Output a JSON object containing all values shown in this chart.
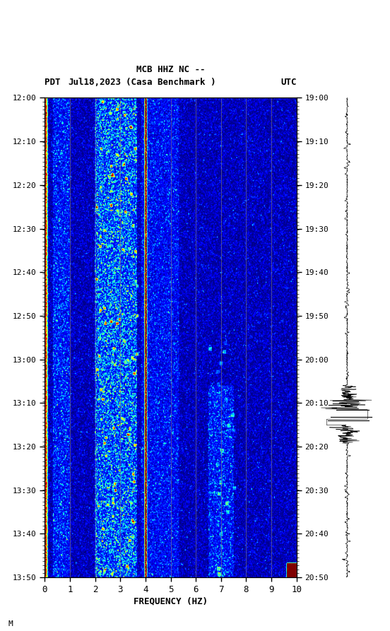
{
  "title_line1": "MCB HHZ NC --",
  "title_line2": "(Casa Benchmark )",
  "label_left": "PDT",
  "label_date": "Jul18,2023",
  "label_right": "UTC",
  "left_times": [
    "12:00",
    "12:10",
    "12:20",
    "12:30",
    "12:40",
    "12:50",
    "13:00",
    "13:10",
    "13:20",
    "13:30",
    "13:40",
    "13:50"
  ],
  "right_times": [
    "19:00",
    "19:10",
    "19:20",
    "19:30",
    "19:40",
    "19:50",
    "20:00",
    "20:10",
    "20:20",
    "20:30",
    "20:40",
    "20:50"
  ],
  "freq_ticks": [
    0,
    1,
    2,
    3,
    4,
    5,
    6,
    7,
    8,
    9,
    10
  ],
  "freq_label": "FREQUENCY (HZ)",
  "vlines_freq": [
    1.0,
    2.0,
    3.0,
    4.0,
    5.0,
    6.0,
    7.0,
    8.0,
    9.0
  ],
  "fig_width": 5.52,
  "fig_height": 8.93,
  "bg_color": "#ffffff",
  "spectrogram_bg": "#00008B",
  "colormap": "jet",
  "n_time": 500,
  "n_freq": 300,
  "freq_min": 0,
  "freq_max": 10,
  "vline_color": "#808080",
  "vline_alpha": 0.6,
  "footer_text": "M",
  "usgs_color": "#006600"
}
